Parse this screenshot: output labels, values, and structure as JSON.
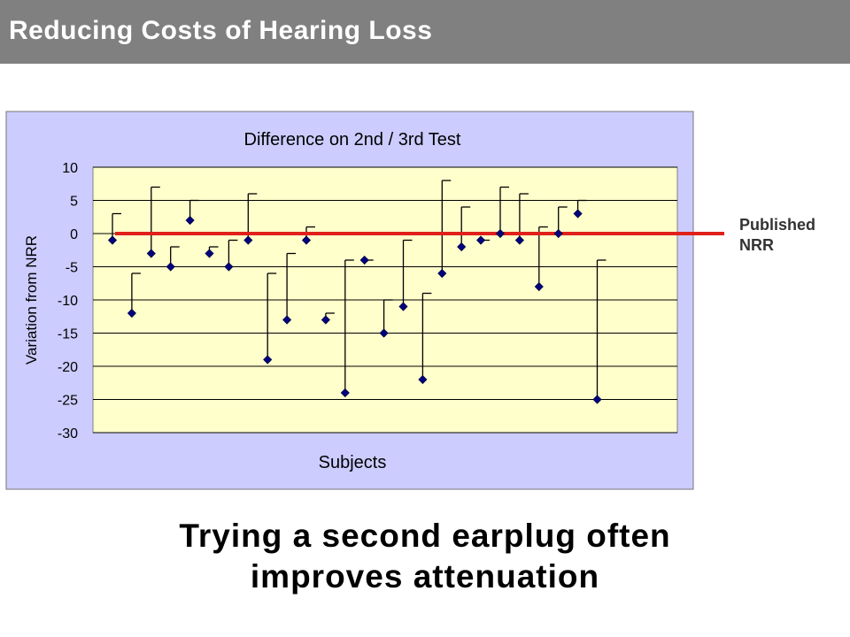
{
  "header": {
    "title": "Reducing Costs of Hearing Loss"
  },
  "caption": {
    "line1": "Trying a second earplug often",
    "line2": "improves attenuation"
  },
  "annotation": {
    "line1": "Published",
    "line2": "NRR"
  },
  "colors": {
    "header_bg": "#808080",
    "chart_area_bg": "#ccccff",
    "plot_area_bg": "#ffffcc",
    "marker": "#000080",
    "reference_line": "#e0201a"
  },
  "chart_data": {
    "type": "scatter",
    "title": "Difference on 2nd / 3rd Test",
    "xlabel": "Subjects",
    "ylabel": "Variation from NRR",
    "ylim": [
      -30,
      10
    ],
    "yticks": [
      10,
      5,
      0,
      -5,
      -10,
      -15,
      -20,
      -25,
      -30
    ],
    "grid": true,
    "reference_line": {
      "y": 0,
      "label": "Published NRR"
    },
    "points": [
      {
        "x": 1,
        "y": -1,
        "high": 3
      },
      {
        "x": 2,
        "y": -12,
        "high": -6
      },
      {
        "x": 3,
        "y": -3,
        "high": 7
      },
      {
        "x": 4,
        "y": -5,
        "high": -2
      },
      {
        "x": 5,
        "y": 2,
        "high": 5
      },
      {
        "x": 6,
        "y": -3,
        "high": -2
      },
      {
        "x": 7,
        "y": -5,
        "high": -1
      },
      {
        "x": 8,
        "y": -1,
        "high": 6
      },
      {
        "x": 9,
        "y": -19,
        "high": -6
      },
      {
        "x": 10,
        "y": -13,
        "high": -3
      },
      {
        "x": 11,
        "y": -1,
        "high": 1
      },
      {
        "x": 12,
        "y": -13,
        "high": -12
      },
      {
        "x": 13,
        "y": -24,
        "high": -4
      },
      {
        "x": 14,
        "y": -4,
        "high": -4
      },
      {
        "x": 15,
        "y": -15,
        "high": -10
      },
      {
        "x": 16,
        "y": -11,
        "high": -1
      },
      {
        "x": 17,
        "y": -22,
        "high": -9
      },
      {
        "x": 18,
        "y": -6,
        "high": 8
      },
      {
        "x": 19,
        "y": -2,
        "high": 4
      },
      {
        "x": 20,
        "y": -1,
        "high": -1
      },
      {
        "x": 21,
        "y": 0,
        "high": 7
      },
      {
        "x": 22,
        "y": -1,
        "high": 6
      },
      {
        "x": 23,
        "y": -8,
        "high": 1
      },
      {
        "x": 24,
        "y": 0,
        "high": 4
      },
      {
        "x": 25,
        "y": 3,
        "high": 5
      },
      {
        "x": 26,
        "y": -25,
        "high": -4
      }
    ]
  }
}
